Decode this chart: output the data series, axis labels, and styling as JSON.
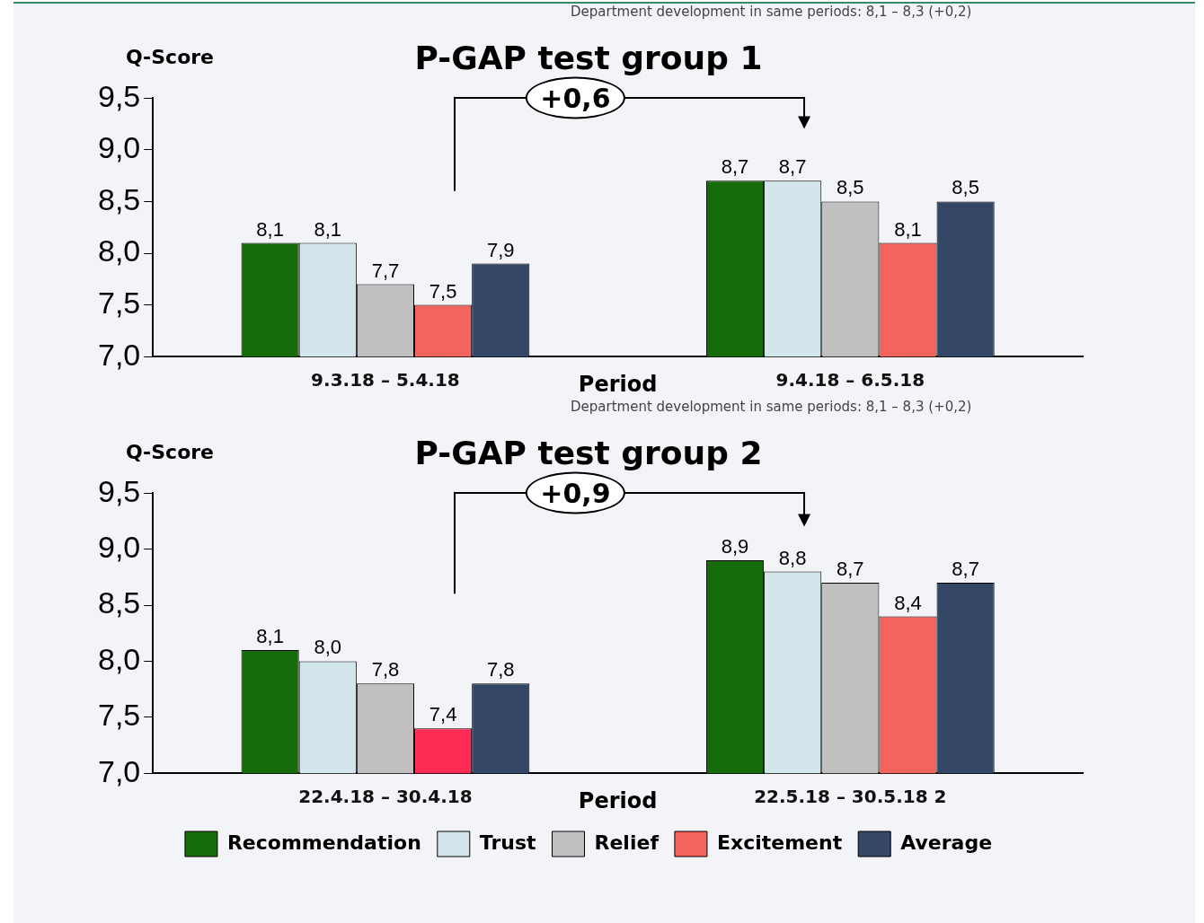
{
  "chart_data": [
    {
      "type": "bar",
      "title": "P-GAP test group 1",
      "xlabel": "Period",
      "ylabel": "Q-Score",
      "categories": [
        "9.3.18 – 5.4.18",
        "9.4.18 – 6.5.18"
      ],
      "series": [
        {
          "color": "#166b0b",
          "values": [
            8.1,
            8.7
          ],
          "value_labels": [
            "8,1",
            "8,7"
          ]
        },
        {
          "color": "#d2e5ea",
          "values": [
            8.1,
            8.7
          ],
          "value_labels": [
            "8,1",
            "8,7"
          ]
        },
        {
          "color": "#c0c0c0",
          "values": [
            7.7,
            8.5
          ],
          "value_labels": [
            "7,7",
            "8,5"
          ]
        },
        {
          "color": "#f4645f",
          "values": [
            7.5,
            8.1
          ],
          "value_labels": [
            "7,5",
            "8,1"
          ]
        },
        {
          "color": "#344766",
          "values": [
            7.9,
            8.5
          ],
          "value_labels": [
            "7,9",
            "8,5"
          ]
        }
      ],
      "ylim": [
        7,
        9.5
      ],
      "yticks": [
        {
          "value": 7,
          "label": "7,0"
        },
        {
          "value": 7.5,
          "label": "7,5"
        },
        {
          "value": 8,
          "label": "8,0"
        },
        {
          "value": 8.5,
          "label": "8,5"
        },
        {
          "value": 9,
          "label": "9,0"
        },
        {
          "value": 9.5,
          "label": "9,5"
        }
      ],
      "annotations": [
        "Department development in same periods: 8,1 – 8,3 (+0,2)",
        "+0,6"
      ]
    },
    {
      "type": "bar",
      "title": "P-GAP test group 2",
      "xlabel": "Period",
      "ylabel": "Q-Score",
      "categories": [
        "22.4.18 – 30.4.18",
        "22.5.18 – 30.5.18 2"
      ],
      "series": [
        {
          "name": "Recommendation",
          "color": "#166b0b",
          "values": [
            8.1,
            8.9
          ],
          "value_labels": [
            "8,1",
            "8,9"
          ]
        },
        {
          "name": "Trust",
          "color": "#d2e5ea",
          "values": [
            8.0,
            8.8
          ],
          "value_labels": [
            "8,0",
            "8,8"
          ]
        },
        {
          "name": "Relief",
          "color": "#c0c0c0",
          "values": [
            7.8,
            8.7
          ],
          "value_labels": [
            "7,8",
            "8,7"
          ]
        },
        {
          "name": "Excitement",
          "color": "#f4645f",
          "colors": [
            "#ff2d55",
            "#f4645f"
          ],
          "values": [
            7.4,
            8.4
          ],
          "value_labels": [
            "7,4",
            "8,4"
          ]
        },
        {
          "name": "Average",
          "color": "#344766",
          "values": [
            7.8,
            8.7
          ],
          "value_labels": [
            "7,8",
            "8,7"
          ]
        }
      ],
      "ylim": [
        7,
        9.5
      ],
      "yticks": [
        {
          "value": 7,
          "label": "7,0"
        },
        {
          "value": 7.5,
          "label": "7,5"
        },
        {
          "value": 8,
          "label": "8,0"
        },
        {
          "value": 8.5,
          "label": "8,5"
        },
        {
          "value": 9,
          "label": "9,0"
        },
        {
          "value": 9.5,
          "label": "9,5"
        }
      ],
      "legend": "bottom",
      "annotations": [
        "Department development in same periods: 8,1 – 8,3 (+0,2)",
        "+0,9"
      ]
    }
  ]
}
